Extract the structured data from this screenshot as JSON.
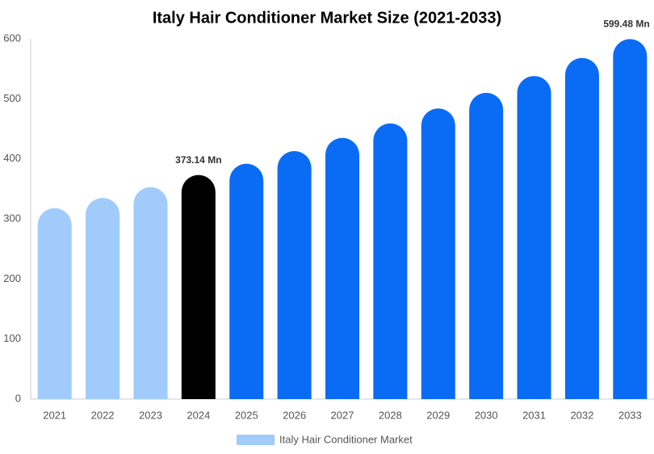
{
  "chart_data": {
    "type": "bar",
    "title": "Italy Hair Conditioner Market Size (2021-2033)",
    "categories": [
      "2021",
      "2022",
      "2023",
      "2024",
      "2025",
      "2026",
      "2027",
      "2028",
      "2029",
      "2030",
      "2031",
      "2032",
      "2033"
    ],
    "series": [
      {
        "name": "Italy Hair Conditioner Market",
        "color": "#a0cbfa",
        "colors": [
          "#a0cbfa",
          "#a0cbfa",
          "#a0cbfa",
          "#000000",
          "#0a6cf5",
          "#0a6cf5",
          "#0a6cf5",
          "#0a6cf5",
          "#0a6cf5",
          "#0a6cf5",
          "#0a6cf5",
          "#0a6cf5",
          "#0a6cf5"
        ],
        "values": [
          318,
          335,
          353,
          373.14,
          392,
          413,
          435,
          459,
          484,
          510,
          538,
          568,
          599.48
        ],
        "value_labels": [
          null,
          null,
          null,
          "373.14 Mn",
          null,
          null,
          null,
          null,
          null,
          null,
          null,
          null,
          "599.48 Mn"
        ]
      }
    ],
    "ylim": [
      0,
      600
    ],
    "yticks": [
      0,
      100,
      200,
      300,
      400,
      500,
      600
    ],
    "grid": false
  }
}
